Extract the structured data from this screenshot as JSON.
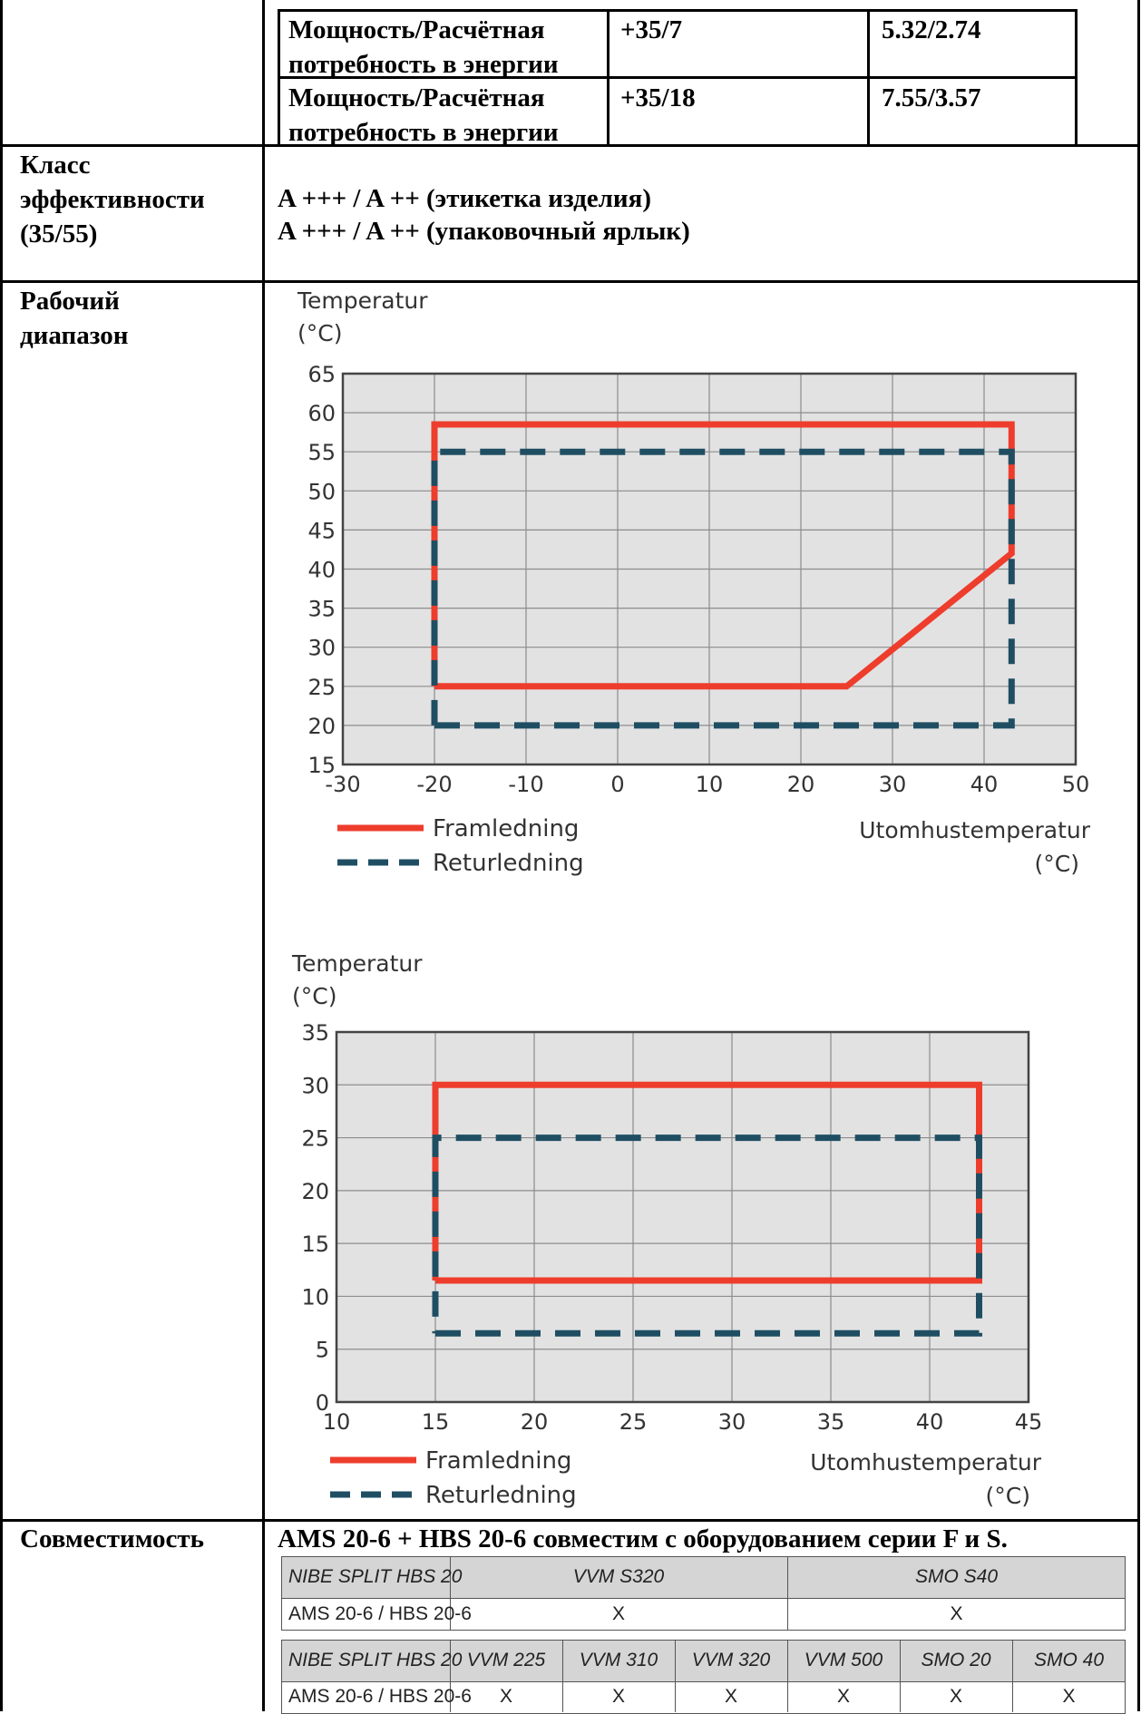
{
  "power_rows": [
    {
      "label": "Мощность/Расчётная потребность в энергии",
      "condition": "+35/7",
      "value": "5.32/2.74"
    },
    {
      "label": "Мощность/Расчётная потребность в энергии",
      "condition": "+35/18",
      "value": "7.55/3.57"
    }
  ],
  "efficiency": {
    "label": "Класс эффективности (35/55)",
    "line1": "A +++ / A ++ (этикетка изделия)",
    "line2": "A +++ / A ++ (упаковочный ярлык)"
  },
  "operating_range": {
    "label": "Рабочий диапазон"
  },
  "compatibility": {
    "label": "Совместимость",
    "headline": "AMS 20-6 + HBS 20-6 совместим с оборудованием серии F и S.",
    "table1": {
      "headers": [
        "NIBE SPLIT HBS 20",
        "VVM S320",
        "SMO S40"
      ],
      "row": [
        "AMS 20-6 / HBS 20-6",
        "X",
        "X"
      ]
    },
    "table2": {
      "headers": [
        "NIBE SPLIT HBS 20",
        "VVM 225",
        "VVM 310",
        "VVM 320",
        "VVM 500",
        "SMO 20",
        "SMO 40"
      ],
      "row": [
        "AMS 20-6 / HBS 20-6",
        "X",
        "X",
        "X",
        "X",
        "X",
        "X"
      ]
    }
  },
  "chart_data": [
    {
      "type": "line",
      "ylabel": "Temperatur\n(°C)",
      "xlabel": "Utomhustemperatur\n(°C)",
      "xlim": [
        -30,
        50
      ],
      "ylim": [
        15,
        65
      ],
      "xticks": [
        -30,
        -20,
        -10,
        0,
        10,
        20,
        30,
        40,
        50
      ],
      "yticks": [
        15,
        20,
        25,
        30,
        35,
        40,
        45,
        50,
        55,
        60,
        65
      ],
      "grid": true,
      "legend_position": "bottom-left",
      "series": [
        {
          "name": "Framledning",
          "style": "solid",
          "color": "#ee3d2c",
          "points": [
            [
              -20,
              25
            ],
            [
              25,
              25
            ],
            [
              43,
              42
            ],
            [
              43,
              58.5
            ],
            [
              -20,
              58.5
            ],
            [
              -20,
              25
            ]
          ]
        },
        {
          "name": "Returledning",
          "style": "dashed",
          "color": "#1f4e63",
          "points": [
            [
              -20,
              20
            ],
            [
              43,
              20
            ],
            [
              43,
              55
            ],
            [
              -20,
              55
            ],
            [
              -20,
              20
            ]
          ]
        }
      ]
    },
    {
      "type": "line",
      "ylabel": "Temperatur\n(°C)",
      "xlabel": "Utomhustemperatur\n(°C)",
      "xlim": [
        10,
        45
      ],
      "ylim": [
        0,
        35
      ],
      "xticks": [
        10,
        15,
        20,
        25,
        30,
        35,
        40,
        45
      ],
      "yticks": [
        0,
        5,
        10,
        15,
        20,
        25,
        30,
        35
      ],
      "grid": true,
      "legend_position": "bottom-left",
      "series": [
        {
          "name": "Framledning",
          "style": "solid",
          "color": "#ee3d2c",
          "points": [
            [
              15,
              11.5
            ],
            [
              42.5,
              11.5
            ],
            [
              42.5,
              30
            ],
            [
              15,
              30
            ],
            [
              15,
              11.5
            ]
          ]
        },
        {
          "name": "Returledning",
          "style": "dashed",
          "color": "#1f4e63",
          "points": [
            [
              15,
              6.5
            ],
            [
              42.5,
              6.5
            ],
            [
              42.5,
              25
            ],
            [
              15,
              25
            ],
            [
              15,
              6.5
            ]
          ]
        }
      ]
    }
  ]
}
